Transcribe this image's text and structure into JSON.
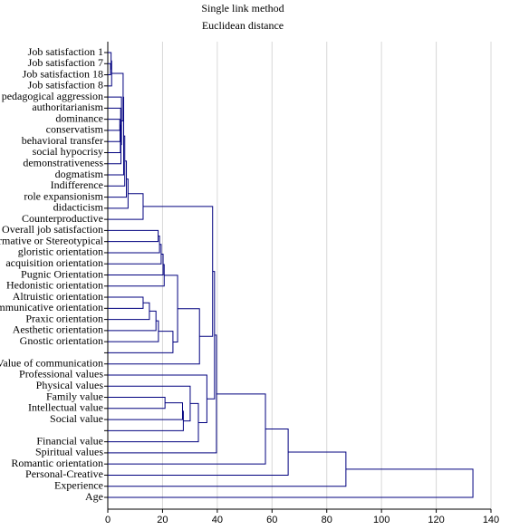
{
  "chart_data": {
    "type": "dendrogram",
    "title": "Single link method",
    "subtitle": "Euclidean distance",
    "categories": [
      "Job satisfaction 1",
      "Job satisfaction 7",
      "Job satisfaction 18",
      "Job satisfaction 8",
      "pedagogical aggression",
      "authoritarianism",
      "dominance",
      "conservatism",
      "behavioral transfer",
      "social hypocrisy",
      "demonstrativeness",
      "dogmatism",
      "Indifference",
      "role expansionism",
      "didacticism",
      "Counterproductive",
      "Overall job satisfaction",
      "ormative or Stereotypical",
      "gloristic orientation",
      "acquisition orientation",
      "Pugnic Orientation",
      "Hedonistic orientation",
      "Altruistic orientation",
      "mmunicative orientation",
      "Praxic orientation",
      "Aesthetic orientation",
      "Gnostic orientation",
      null,
      "Value of communication",
      "Professional values",
      "Physical values",
      "Family value",
      "Intellectual value",
      "Social value",
      null,
      "Financial value",
      "Spiritual values",
      "Romantic orientation",
      "Personal-Creative",
      "Experience",
      "Age"
    ],
    "merges": [
      [
        1,
        2,
        1.0
      ],
      [
        0,
        41,
        1.2
      ],
      [
        42,
        3,
        1.4
      ],
      [
        6,
        7,
        4.4
      ],
      [
        44,
        8,
        4.5
      ],
      [
        45,
        9,
        4.6
      ],
      [
        5,
        46,
        4.7
      ],
      [
        47,
        10,
        4.8
      ],
      [
        4,
        48,
        5.0
      ],
      [
        43,
        49,
        5.6
      ],
      [
        50,
        11,
        5.8
      ],
      [
        51,
        12,
        6.2
      ],
      [
        52,
        13,
        6.8
      ],
      [
        53,
        14,
        7.4
      ],
      [
        54,
        15,
        12.9
      ],
      [
        16,
        17,
        18.4
      ],
      [
        56,
        18,
        18.9
      ],
      [
        57,
        19,
        19.5
      ],
      [
        58,
        20,
        20.2
      ],
      [
        59,
        21,
        20.6
      ],
      [
        22,
        23,
        12.9
      ],
      [
        61,
        24,
        15.2
      ],
      [
        62,
        25,
        17.6
      ],
      [
        63,
        26,
        18.5
      ],
      [
        64,
        27,
        23.8
      ],
      [
        60,
        65,
        25.5
      ],
      [
        66,
        28,
        33.5
      ],
      [
        55,
        67,
        38.3
      ],
      [
        31,
        32,
        20.9
      ],
      [
        69,
        33,
        27.3
      ],
      [
        70,
        34,
        27.6
      ],
      [
        30,
        71,
        30.1
      ],
      [
        72,
        35,
        33.1
      ],
      [
        29,
        73,
        36.2
      ],
      [
        68,
        74,
        39.0
      ],
      [
        75,
        36,
        39.7
      ],
      [
        76,
        37,
        57.6
      ],
      [
        77,
        38,
        65.9
      ],
      [
        78,
        39,
        87.0
      ],
      [
        79,
        40,
        133.4
      ]
    ],
    "color": "#00007f",
    "xlim": [
      0,
      140
    ],
    "xticks": [
      0,
      20,
      40,
      60,
      80,
      100,
      120,
      140
    ],
    "grid": true
  }
}
